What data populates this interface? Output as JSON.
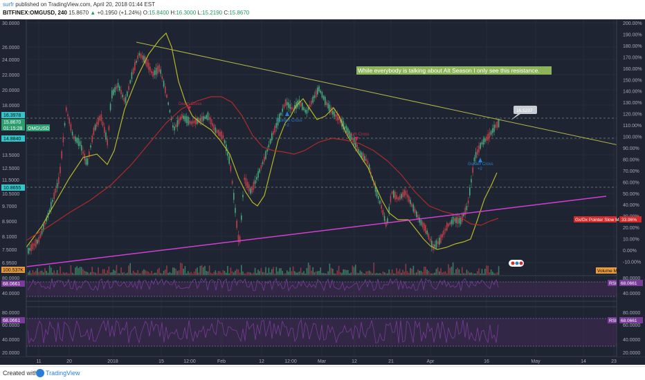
{
  "header": {
    "author": "surfr",
    "published_text": " published on TradingView.com, April 20, 2018 01:44 EST",
    "symbol": "BITFINEX:OMGUSD, 240",
    "up_arrow": "▲",
    "change": "+0.1950 (+1.24%)",
    "last": "15.8670",
    "open_label": "O:",
    "open": "15.8400",
    "high_label": "H:",
    "high": "16.3000",
    "low_label": "L:",
    "low": "15.2190",
    "close_label": "C:",
    "close": "15.8670"
  },
  "price_axis": [
    "30.0000",
    "26.0000",
    "24.0000",
    "22.0000",
    "20.0000",
    "18.0000",
    "14.8840",
    "13.5000",
    "12.5000",
    "11.5000",
    "10.5000",
    "9.7000",
    "8.9000",
    "8.1000",
    "7.5000",
    "6.9500"
  ],
  "percent_axis": [
    "200.00%",
    "190.00%",
    "180.00%",
    "170.00%",
    "160.00%",
    "150.00%",
    "140.00%",
    "130.00%",
    "120.00%",
    "110.00%",
    "100.00%",
    "90.00%",
    "80.00%",
    "70.00%",
    "60.00%",
    "50.00%",
    "40.00%",
    "30.00%",
    "20.00%",
    "10.00%",
    "0.00%",
    "-10.00%"
  ],
  "rsi1_axis": [
    "80.0000",
    "40.0000"
  ],
  "rsi2_axis": [
    "80.0000",
    "60.0000",
    "40.0000",
    "20.0000"
  ],
  "time_axis": [
    "11",
    "20",
    "2018",
    "15",
    "12:00",
    "Feb",
    "12",
    "12:00",
    "Mar",
    "12",
    "21",
    "Apr",
    "16",
    "May",
    "14",
    "23"
  ],
  "price_labels": {
    "p1": "16.3978",
    "p2": "15.8670",
    "countdown": "01:15:28",
    "symbol_tag": "OMGUSD",
    "p3": "14.8840",
    "p4": "10.8655",
    "volume": "100.537K",
    "rsi1": "68.0661",
    "rsi2": "68.0661"
  },
  "right_labels": {
    "gx_label": "Gx/Dx Pointer Slow MA",
    "gx_value": "33.96%",
    "volume_ma": "Volume MA",
    "rsi1_name": "RSI",
    "rsi1_value": "68.0661",
    "rsi2_name": "RSI",
    "rsi2_value": "68.0661",
    "callout": "16.5237"
  },
  "annotations": {
    "resistance_note": "While everybody is talking about Alt Season I only see this resistance.",
    "golden_cross_1": "Golden Cross",
    "golden_cross_1_sub": "+2",
    "death_cross_1": "Death Cross",
    "death_cross_2": "Death Cross",
    "golden_cross_2": "Golden Cross",
    "golden_cross_2_sub": "+2"
  },
  "footer": {
    "created": "Created with",
    "brand": "TradingView"
  },
  "colors": {
    "background": "#1e2431",
    "resistance_line": "#b6b84a",
    "support_line": "#d23fd2",
    "fast_ma": "#b8b82a",
    "slow_ma": "#b02a2a",
    "up_candle": "#4aa87e",
    "down_candle": "#c0404a",
    "rsi": "#7a3a9a",
    "annotation_bg": "#8db45a"
  }
}
